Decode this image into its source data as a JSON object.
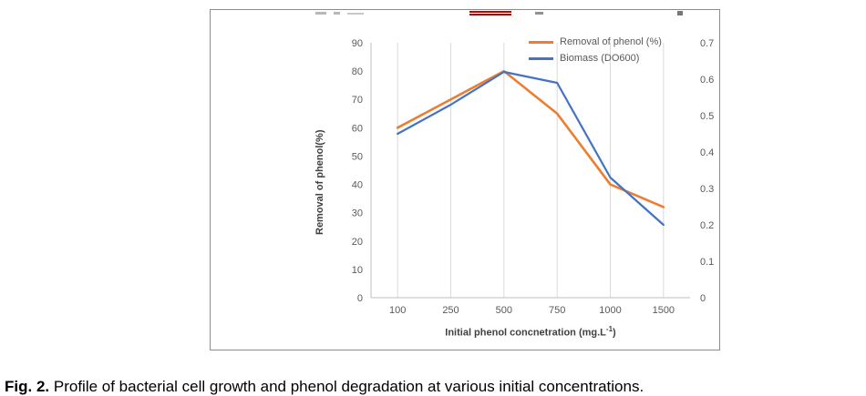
{
  "figure": {
    "caption_label": "Fig. 2.",
    "caption_text": "Profile of bacterial cell growth and phenol degradation at various initial concentrations."
  },
  "chart_data": {
    "type": "line",
    "title": "",
    "categories": [
      100,
      250,
      500,
      750,
      1000,
      1500
    ],
    "series": [
      {
        "name": "Removal of phenol (%)",
        "axis": "left",
        "color": "#ED7D31",
        "line_width": 2.6,
        "values": [
          60,
          70,
          80,
          65,
          40,
          32
        ]
      },
      {
        "name": "Biomass (DO600)",
        "axis": "right",
        "color": "#4472C4",
        "line_width": 2.2,
        "values": [
          0.45,
          0.53,
          0.62,
          0.59,
          0.33,
          0.2
        ]
      }
    ],
    "left_axis": {
      "title": "Removal of phenol(%)",
      "min": 0,
      "max": 90,
      "ticks": [
        0,
        10,
        20,
        30,
        40,
        50,
        60,
        70,
        80,
        90
      ]
    },
    "right_axis": {
      "min": 0,
      "max": 0.7,
      "ticks": [
        0,
        0.1,
        0.2,
        0.3,
        0.4,
        0.5,
        0.6,
        0.7
      ]
    },
    "xlabel_main": "Initial phenol concnetration (mg.L",
    "xlabel_sup": "-1",
    "xlabel_end": ")",
    "legend_position": "top-right",
    "grid": "vertical-only",
    "gridline_color": "#D9D9D9",
    "axis_line_color": "#BFBFBF"
  }
}
